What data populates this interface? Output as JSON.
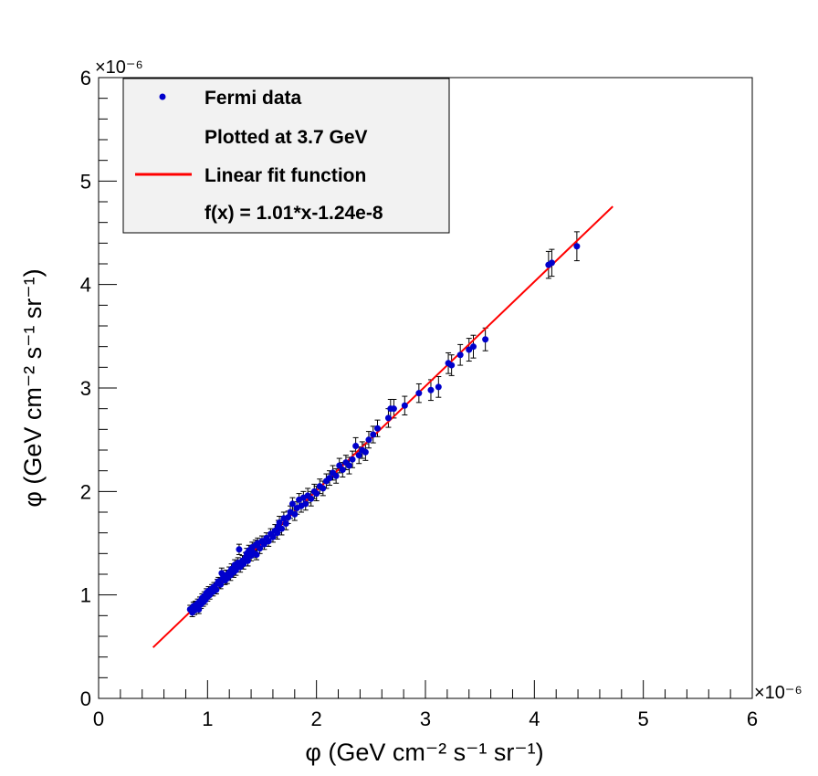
{
  "chart_data": {
    "type": "scatter",
    "title": "",
    "xlabel": "φ (GeV cm⁻² s⁻¹ sr⁻¹)",
    "ylabel": "φ (GeV cm⁻² s⁻¹ sr⁻¹)",
    "x_axis": {
      "min": 0,
      "max": 6,
      "ticks": [
        0,
        1,
        2,
        3,
        4,
        5,
        6
      ],
      "tick_labels": [
        "0",
        "1",
        "2",
        "3",
        "4",
        "5",
        "6"
      ],
      "exponent_label": "×10⁻⁶"
    },
    "y_axis": {
      "min": 0,
      "max": 6,
      "ticks": [
        0,
        1,
        2,
        3,
        4,
        5,
        6
      ],
      "tick_labels": [
        "0",
        "1",
        "2",
        "3",
        "4",
        "5",
        "6"
      ],
      "exponent_label": "×10⁻⁶"
    },
    "grid": false,
    "legend": {
      "position": "top-left",
      "entries": [
        {
          "label": "Fermi data",
          "marker": "dot",
          "color": "#0000cc"
        },
        {
          "label": "Plotted at 3.7 GeV",
          "marker": "none",
          "color": ""
        },
        {
          "label": "Linear fit function",
          "marker": "line",
          "color": "#ff0000"
        },
        {
          "label": "f(x) = 1.01*x-1.24e-8",
          "marker": "none",
          "color": ""
        }
      ]
    },
    "fit": {
      "name": "Linear fit function",
      "slope": 1.01,
      "intercept": -0.0124,
      "x_range": [
        0.5,
        4.72
      ],
      "color": "#ff0000"
    },
    "series": [
      {
        "name": "Fermi data",
        "color": "#0000cc",
        "error_color": "#000000",
        "points": [
          [
            0.84,
            0.86,
            0.04
          ],
          [
            0.86,
            0.83,
            0.04
          ],
          [
            0.87,
            0.89,
            0.04
          ],
          [
            0.88,
            0.85,
            0.04
          ],
          [
            0.89,
            0.9,
            0.04
          ],
          [
            0.9,
            0.88,
            0.04
          ],
          [
            0.91,
            0.92,
            0.04
          ],
          [
            0.92,
            0.86,
            0.04
          ],
          [
            0.93,
            0.94,
            0.04
          ],
          [
            0.94,
            0.91,
            0.04
          ],
          [
            0.95,
            0.97,
            0.04
          ],
          [
            0.96,
            0.93,
            0.04
          ],
          [
            0.97,
            0.99,
            0.04
          ],
          [
            0.98,
            0.95,
            0.04
          ],
          [
            0.99,
            1.02,
            0.04
          ],
          [
            1.0,
            0.98,
            0.04
          ],
          [
            1.01,
            1.04,
            0.04
          ],
          [
            1.02,
            1.0,
            0.04
          ],
          [
            1.04,
            1.06,
            0.04
          ],
          [
            1.05,
            1.03,
            0.04
          ],
          [
            1.06,
            1.08,
            0.04
          ],
          [
            1.08,
            1.05,
            0.04
          ],
          [
            1.09,
            1.11,
            0.04
          ],
          [
            1.1,
            1.13,
            0.04
          ],
          [
            1.12,
            1.1,
            0.04
          ],
          [
            1.13,
            1.21,
            0.05
          ],
          [
            1.14,
            1.16,
            0.04
          ],
          [
            1.16,
            1.14,
            0.04
          ],
          [
            1.17,
            1.19,
            0.05
          ],
          [
            1.18,
            1.16,
            0.05
          ],
          [
            1.2,
            1.22,
            0.05
          ],
          [
            1.21,
            1.19,
            0.05
          ],
          [
            1.22,
            1.25,
            0.05
          ],
          [
            1.24,
            1.22,
            0.05
          ],
          [
            1.25,
            1.29,
            0.05
          ],
          [
            1.26,
            1.24,
            0.05
          ],
          [
            1.28,
            1.31,
            0.05
          ],
          [
            1.29,
            1.44,
            0.05
          ],
          [
            1.3,
            1.27,
            0.05
          ],
          [
            1.32,
            1.33,
            0.05
          ],
          [
            1.33,
            1.3,
            0.05
          ],
          [
            1.35,
            1.36,
            0.05
          ],
          [
            1.36,
            1.4,
            0.05
          ],
          [
            1.37,
            1.33,
            0.05
          ],
          [
            1.38,
            1.43,
            0.05
          ],
          [
            1.4,
            1.38,
            0.05
          ],
          [
            1.41,
            1.46,
            0.05
          ],
          [
            1.42,
            1.41,
            0.05
          ],
          [
            1.44,
            1.48,
            0.05
          ],
          [
            1.45,
            1.39,
            0.05
          ],
          [
            1.46,
            1.5,
            0.05
          ],
          [
            1.48,
            1.45,
            0.05
          ],
          [
            1.5,
            1.52,
            0.05
          ],
          [
            1.52,
            1.49,
            0.05
          ],
          [
            1.54,
            1.55,
            0.05
          ],
          [
            1.56,
            1.52,
            0.05
          ],
          [
            1.58,
            1.59,
            0.05
          ],
          [
            1.6,
            1.56,
            0.05
          ],
          [
            1.62,
            1.62,
            0.06
          ],
          [
            1.64,
            1.6,
            0.06
          ],
          [
            1.65,
            1.66,
            0.06
          ],
          [
            1.66,
            1.7,
            0.06
          ],
          [
            1.68,
            1.64,
            0.06
          ],
          [
            1.7,
            1.74,
            0.06
          ],
          [
            1.72,
            1.69,
            0.06
          ],
          [
            1.74,
            1.75,
            0.06
          ],
          [
            1.76,
            1.8,
            0.06
          ],
          [
            1.78,
            1.88,
            0.06
          ],
          [
            1.8,
            1.78,
            0.06
          ],
          [
            1.82,
            1.84,
            0.06
          ],
          [
            1.84,
            1.92,
            0.06
          ],
          [
            1.86,
            1.86,
            0.06
          ],
          [
            1.88,
            1.94,
            0.06
          ],
          [
            1.9,
            1.88,
            0.06
          ],
          [
            1.92,
            1.96,
            0.07
          ],
          [
            1.95,
            1.93,
            0.07
          ],
          [
            1.98,
            2.0,
            0.07
          ],
          [
            2.0,
            1.98,
            0.07
          ],
          [
            2.03,
            2.05,
            0.07
          ],
          [
            2.06,
            2.03,
            0.07
          ],
          [
            2.09,
            2.1,
            0.07
          ],
          [
            2.12,
            2.13,
            0.07
          ],
          [
            2.15,
            2.18,
            0.07
          ],
          [
            2.18,
            2.15,
            0.07
          ],
          [
            2.21,
            2.25,
            0.07
          ],
          [
            2.24,
            2.21,
            0.07
          ],
          [
            2.27,
            2.28,
            0.07
          ],
          [
            2.3,
            2.25,
            0.08
          ],
          [
            2.33,
            2.31,
            0.08
          ],
          [
            2.36,
            2.44,
            0.08
          ],
          [
            2.39,
            2.35,
            0.08
          ],
          [
            2.42,
            2.4,
            0.08
          ],
          [
            2.45,
            2.38,
            0.08
          ],
          [
            2.48,
            2.5,
            0.08
          ],
          [
            2.52,
            2.55,
            0.08
          ],
          [
            2.56,
            2.61,
            0.08
          ],
          [
            2.66,
            2.71,
            0.09
          ],
          [
            2.68,
            2.8,
            0.09
          ],
          [
            2.71,
            2.8,
            0.09
          ],
          [
            2.81,
            2.83,
            0.09
          ],
          [
            2.94,
            2.95,
            0.09
          ],
          [
            3.05,
            2.98,
            0.1
          ],
          [
            3.12,
            3.01,
            0.1
          ],
          [
            3.21,
            3.24,
            0.1
          ],
          [
            3.24,
            3.22,
            0.1
          ],
          [
            3.32,
            3.32,
            0.1
          ],
          [
            3.4,
            3.37,
            0.11
          ],
          [
            3.44,
            3.4,
            0.11
          ],
          [
            3.55,
            3.47,
            0.11
          ],
          [
            4.13,
            4.19,
            0.13
          ],
          [
            4.16,
            4.21,
            0.13
          ],
          [
            4.39,
            4.37,
            0.14
          ]
        ]
      }
    ]
  }
}
